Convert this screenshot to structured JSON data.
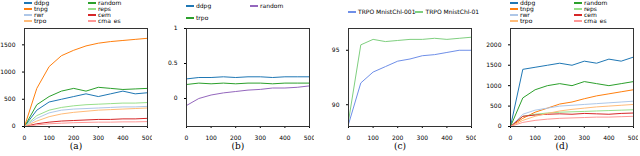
{
  "chart_data": [
    {
      "type": "line",
      "title": "(a)",
      "grid": false,
      "x": [
        0,
        50,
        100,
        150,
        200,
        250,
        300,
        350,
        400,
        450,
        500
      ],
      "xlim": [
        0,
        500
      ],
      "xticks": [
        0,
        100,
        200,
        300,
        400,
        500
      ],
      "ylim": [
        0,
        1800
      ],
      "yticks": [
        0,
        500,
        1000,
        1500
      ],
      "series": [
        {
          "name": "ddpg",
          "color": "#1f77b4",
          "values": [
            0,
            300,
            450,
            500,
            550,
            600,
            550,
            600,
            650,
            600,
            620
          ]
        },
        {
          "name": "random",
          "color": "#2ca02c",
          "values": [
            0,
            400,
            550,
            650,
            700,
            650,
            720,
            700,
            680,
            690,
            700
          ]
        },
        {
          "name": "tnpg",
          "color": "#ff7f0e",
          "values": [
            0,
            700,
            1100,
            1300,
            1400,
            1480,
            1530,
            1560,
            1580,
            1600,
            1620
          ]
        },
        {
          "name": "reps",
          "color": "#98df8a",
          "values": [
            0,
            200,
            300,
            350,
            380,
            400,
            410,
            420,
            430,
            430,
            440
          ]
        },
        {
          "name": "rwr",
          "color": "#aec7e8",
          "values": [
            0,
            150,
            250,
            300,
            320,
            330,
            340,
            350,
            360,
            360,
            370
          ]
        },
        {
          "name": "cem",
          "color": "#d62728",
          "values": [
            0,
            50,
            80,
            100,
            110,
            120,
            130,
            130,
            140,
            140,
            150
          ]
        },
        {
          "name": "trpo",
          "color": "#ffbb78",
          "values": [
            0,
            100,
            180,
            230,
            260,
            280,
            300,
            310,
            320,
            330,
            340
          ]
        },
        {
          "name": "cma_es",
          "color": "#ff9896",
          "values": [
            0,
            30,
            50,
            60,
            70,
            75,
            80,
            80,
            85,
            85,
            90
          ]
        }
      ]
    },
    {
      "type": "line",
      "title": "(b)",
      "grid": false,
      "x": [
        0,
        50,
        100,
        150,
        200,
        250,
        300,
        350,
        400,
        450,
        500
      ],
      "xlim": [
        0,
        500
      ],
      "xticks": [
        0,
        100,
        200,
        300,
        400,
        500
      ],
      "ylim": [
        -0.4,
        1.0
      ],
      "yticks": [
        0,
        0.5,
        1
      ],
      "series": [
        {
          "name": "ddpg",
          "color": "#1f77b4",
          "values": [
            0.28,
            0.3,
            0.3,
            0.31,
            0.3,
            0.31,
            0.31,
            0.3,
            0.31,
            0.31,
            0.31
          ]
        },
        {
          "name": "random",
          "color": "#9467bd",
          "values": [
            -0.1,
            0.0,
            0.05,
            0.08,
            0.1,
            0.12,
            0.13,
            0.15,
            0.15,
            0.16,
            0.18
          ]
        },
        {
          "name": "trpo",
          "color": "#2ca02c",
          "values": [
            0.2,
            0.22,
            0.21,
            0.22,
            0.21,
            0.22,
            0.22,
            0.21,
            0.22,
            0.22,
            0.22
          ]
        }
      ]
    },
    {
      "type": "line",
      "title": "(c)",
      "grid": false,
      "x": [
        0,
        50,
        100,
        150,
        200,
        250,
        300,
        350,
        400,
        450,
        500
      ],
      "xlim": [
        0,
        500
      ],
      "xticks": [
        0,
        100,
        200,
        300,
        400,
        500
      ],
      "ylim": [
        88,
        97
      ],
      "yticks": [
        90,
        95
      ],
      "series": [
        {
          "name": "TRPO MnistChl-001",
          "color": "#6f8fe8",
          "values": [
            88.2,
            92,
            93,
            93.5,
            94,
            94.2,
            94.5,
            94.6,
            94.8,
            95,
            95
          ]
        },
        {
          "name": "TRPO MnistChl-01",
          "color": "#7fcf7f",
          "values": [
            88.5,
            95.5,
            96,
            95.8,
            95.9,
            96,
            96,
            96.1,
            96,
            96.1,
            96.2
          ]
        }
      ]
    },
    {
      "type": "line",
      "title": "(d)",
      "grid": false,
      "x": [
        0,
        50,
        100,
        150,
        200,
        250,
        300,
        350,
        400,
        450,
        500
      ],
      "xlim": [
        0,
        500
      ],
      "xticks": [
        0,
        100,
        200,
        300,
        400,
        500
      ],
      "ylim": [
        0,
        2400
      ],
      "yticks": [
        0,
        500,
        1000,
        1500,
        2000
      ],
      "series": [
        {
          "name": "ddpg",
          "color": "#1f77b4",
          "values": [
            0,
            1400,
            1450,
            1500,
            1550,
            1500,
            1600,
            1550,
            1650,
            1600,
            1700
          ]
        },
        {
          "name": "random",
          "color": "#2ca02c",
          "values": [
            0,
            700,
            900,
            1000,
            1050,
            1000,
            1100,
            1050,
            1000,
            1050,
            1100
          ]
        },
        {
          "name": "tnpg",
          "color": "#ff7f0e",
          "values": [
            0,
            200,
            350,
            450,
            550,
            600,
            680,
            750,
            800,
            850,
            900
          ]
        },
        {
          "name": "reps",
          "color": "#98df8a",
          "values": [
            0,
            250,
            300,
            330,
            350,
            360,
            370,
            380,
            390,
            400,
            410
          ]
        },
        {
          "name": "rwr",
          "color": "#aec7e8",
          "values": [
            0,
            300,
            400,
            450,
            500,
            520,
            540,
            560,
            580,
            600,
            620
          ]
        },
        {
          "name": "cem",
          "color": "#d62728",
          "values": [
            0,
            250,
            280,
            300,
            310,
            300,
            320,
            310,
            300,
            320,
            330
          ]
        },
        {
          "name": "trpo",
          "color": "#ffbb78",
          "values": [
            0,
            150,
            250,
            320,
            380,
            420,
            450,
            480,
            500,
            520,
            540
          ]
        },
        {
          "name": "cma_es",
          "color": "#ff9896",
          "values": [
            0,
            100,
            150,
            180,
            200,
            210,
            220,
            230,
            230,
            240,
            250
          ]
        }
      ]
    }
  ]
}
